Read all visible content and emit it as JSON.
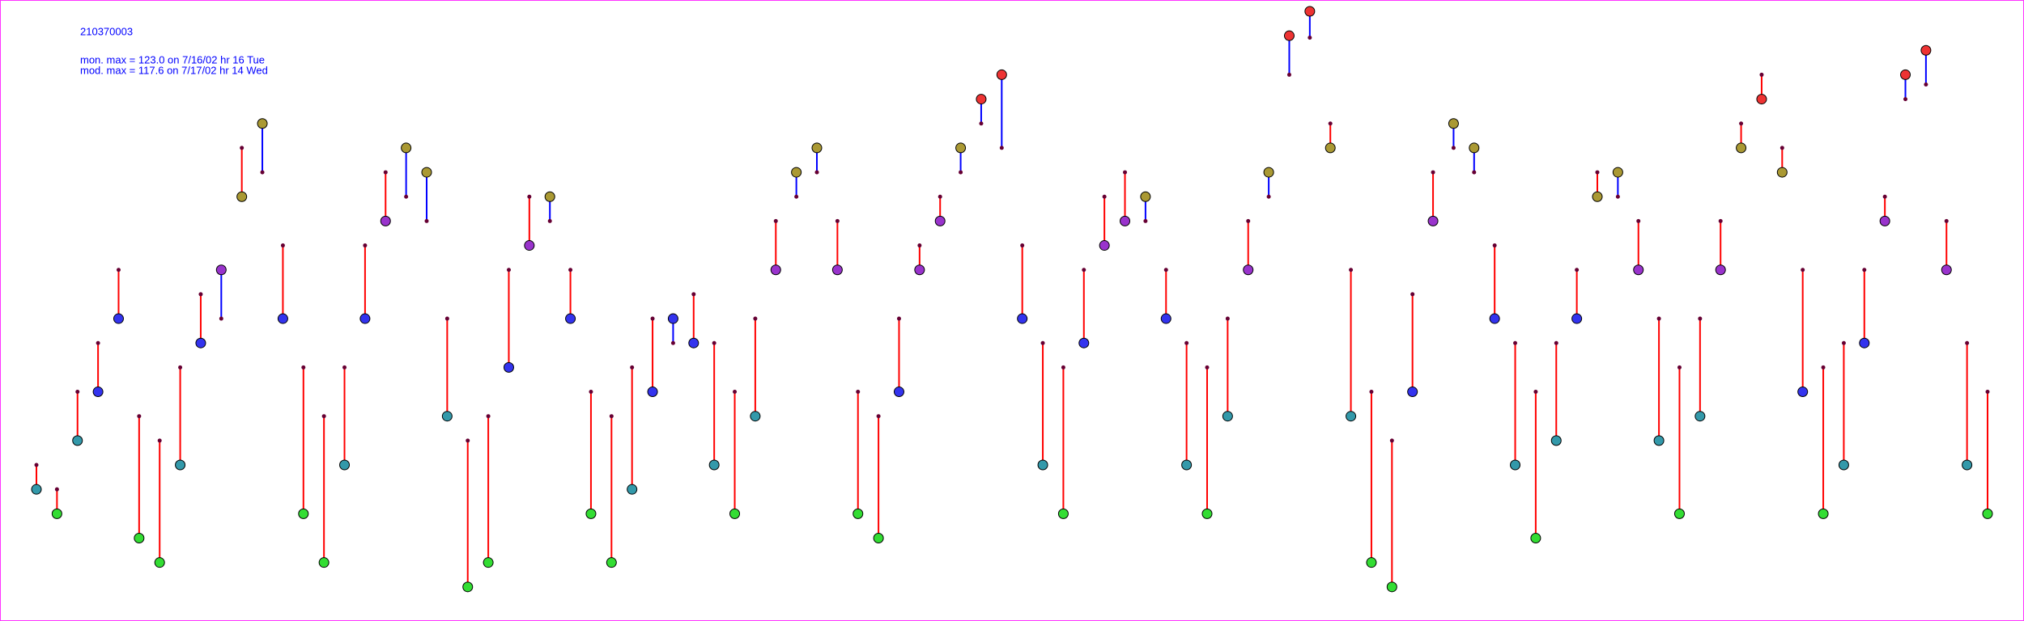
{
  "chart_data": {
    "type": "dumbbell",
    "title": "210370003",
    "annotations": [
      "mon. max =  123.0 on 7/16/02 hr 16 Tue",
      "mod. max =  117.6 on 7/17/02 hr 14 Wed"
    ],
    "monitor": [
      25,
      20,
      35,
      45,
      60,
      15,
      10,
      30,
      55,
      70,
      85,
      100,
      60,
      20,
      10,
      30,
      60,
      80,
      95,
      90,
      40,
      5,
      10,
      50,
      75,
      85,
      60,
      20,
      10,
      25,
      45,
      60,
      55,
      30,
      20,
      40,
      70,
      90,
      95,
      70,
      20,
      15,
      45,
      70,
      80,
      95,
      105,
      110,
      60,
      30,
      20,
      55,
      75,
      80,
      85,
      60,
      30,
      20,
      40,
      70,
      90,
      118,
      123,
      95,
      40,
      10,
      5,
      45,
      80,
      100,
      95,
      60,
      30,
      15,
      35,
      60,
      85,
      90,
      70,
      35,
      20,
      40,
      70,
      95,
      105,
      90,
      45,
      20,
      30,
      55,
      80,
      110,
      115,
      70,
      30,
      20
    ],
    "model": [
      30,
      25,
      45,
      55,
      70,
      40,
      35,
      50,
      65,
      60,
      95,
      90,
      75,
      50,
      40,
      50,
      75,
      90,
      85,
      80,
      60,
      35,
      40,
      70,
      85,
      80,
      70,
      45,
      40,
      50,
      60,
      55,
      65,
      55,
      45,
      60,
      80,
      85,
      90,
      80,
      45,
      40,
      60,
      75,
      85,
      90,
      100,
      95,
      75,
      55,
      50,
      70,
      85,
      90,
      80,
      70,
      55,
      50,
      60,
      80,
      85,
      110,
      117.6,
      100,
      70,
      45,
      35,
      65,
      90,
      95,
      90,
      75,
      55,
      45,
      55,
      70,
      90,
      85,
      80,
      60,
      50,
      60,
      80,
      100,
      110,
      95,
      70,
      50,
      55,
      70,
      85,
      105,
      108,
      80,
      55,
      45
    ],
    "over_color": "#ff0000",
    "under_color": "#0000ff",
    "marker_colors": [
      "#33dd33",
      "#3399aa",
      "#3333ee",
      "#9933cc",
      "#aa9933",
      "#ee3333"
    ]
  }
}
